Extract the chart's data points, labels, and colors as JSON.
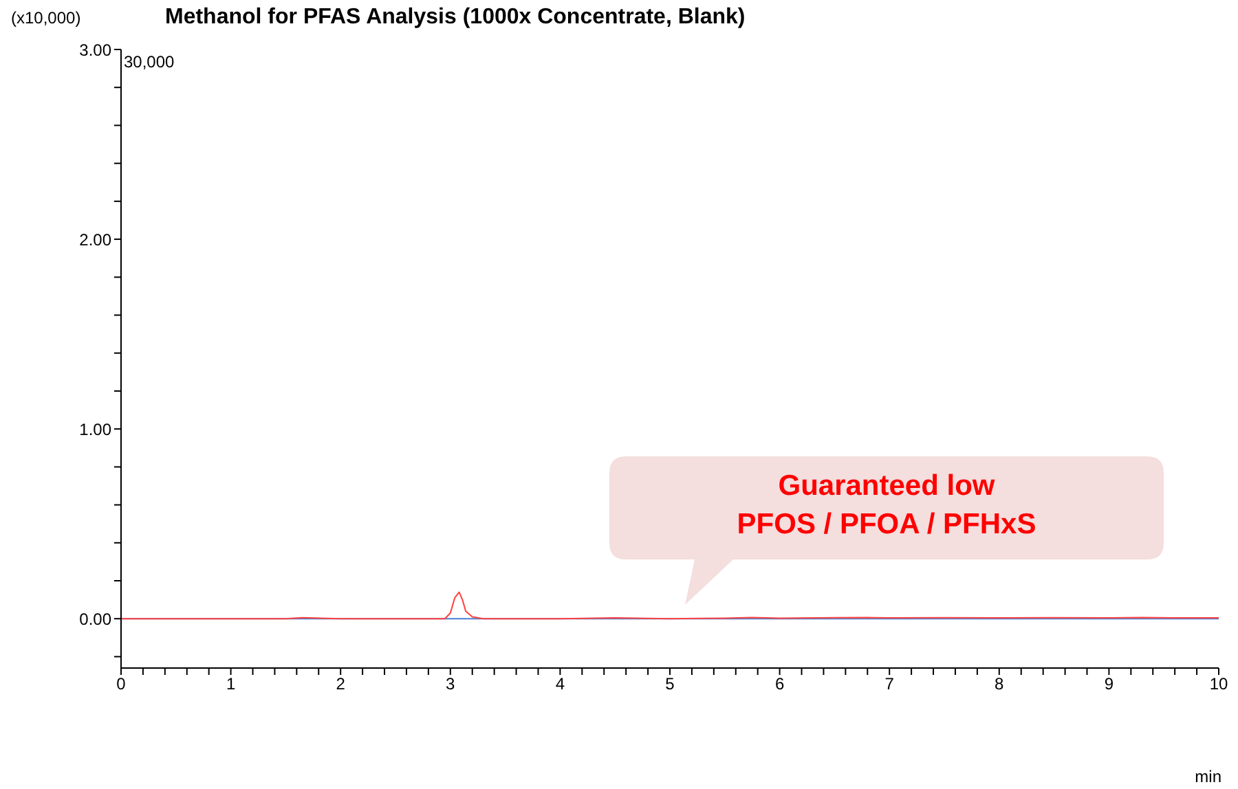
{
  "chart_data": {
    "type": "line",
    "title": "Methanol for PFAS Analysis (1000x Concentrate, Blank)",
    "ylabel": "(x10,000)",
    "xlabel": "min",
    "annotations": [
      "30,000",
      "Guaranteed low\nPFOS / PFOA / PFHxS"
    ],
    "xlim": [
      0,
      10
    ],
    "ylim": [
      -0.26,
      3
    ],
    "xticks": [
      0,
      {
        "value": 0.2,
        "label": null
      },
      {
        "value": 0.4,
        "label": null
      },
      {
        "value": 0.6,
        "label": null
      },
      {
        "value": 0.8,
        "label": null
      },
      1,
      {
        "value": 1.2,
        "label": null
      },
      {
        "value": 1.4,
        "label": null
      },
      {
        "value": 1.6,
        "label": null
      },
      {
        "value": 1.8,
        "label": null
      },
      2,
      {
        "value": 2.2,
        "label": null
      },
      {
        "value": 2.4,
        "label": null
      },
      {
        "value": 2.6,
        "label": null
      },
      {
        "value": 2.8,
        "label": null
      },
      3,
      {
        "value": 3.2,
        "label": null
      },
      {
        "value": 3.4,
        "label": null
      },
      {
        "value": 3.6,
        "label": null
      },
      {
        "value": 3.8,
        "label": null
      },
      4,
      {
        "value": 4.2,
        "label": null
      },
      {
        "value": 4.4,
        "label": null
      },
      {
        "value": 4.6,
        "label": null
      },
      {
        "value": 4.8,
        "label": null
      },
      5,
      {
        "value": 5.2,
        "label": null
      },
      {
        "value": 5.4,
        "label": null
      },
      {
        "value": 5.6,
        "label": null
      },
      {
        "value": 5.8,
        "label": null
      },
      6,
      {
        "value": 6.2,
        "label": null
      },
      {
        "value": 6.4,
        "label": null
      },
      {
        "value": 6.6,
        "label": null
      },
      {
        "value": 6.8,
        "label": null
      },
      7,
      {
        "value": 7.2,
        "label": null
      },
      {
        "value": 7.4,
        "label": null
      },
      {
        "value": 7.6,
        "label": null
      },
      {
        "value": 7.8,
        "label": null
      },
      8,
      {
        "value": 8.2,
        "label": null
      },
      {
        "value": 8.4,
        "label": null
      },
      {
        "value": 8.6,
        "label": null
      },
      {
        "value": 8.8,
        "label": null
      },
      9,
      {
        "value": 9.2,
        "label": null
      },
      {
        "value": 9.4,
        "label": null
      },
      {
        "value": 9.6,
        "label": null
      },
      {
        "value": 9.8,
        "label": null
      },
      10
    ],
    "yticks": [
      {
        "value": -0.2,
        "label": null
      },
      {
        "value": 0,
        "label": "0.00"
      },
      {
        "value": 0.2,
        "label": null
      },
      {
        "value": 0.4,
        "label": null
      },
      {
        "value": 0.6,
        "label": null
      },
      {
        "value": 0.8,
        "label": null
      },
      {
        "value": 1,
        "label": "1.00"
      },
      {
        "value": 1.2,
        "label": null
      },
      {
        "value": 1.4,
        "label": null
      },
      {
        "value": 1.6,
        "label": null
      },
      {
        "value": 1.8,
        "label": null
      },
      {
        "value": 2,
        "label": "2.00"
      },
      {
        "value": 2.2,
        "label": null
      },
      {
        "value": 2.4,
        "label": null
      },
      {
        "value": 2.6,
        "label": null
      },
      {
        "value": 2.8,
        "label": null
      },
      {
        "value": 3,
        "label": "3.00"
      }
    ],
    "marker": "none",
    "line_style": "solid",
    "series": [
      {
        "color": "#4a7fd0",
        "x": [
          0,
          2,
          4,
          6,
          8,
          10
        ],
        "values": [
          0,
          0,
          0,
          0,
          0,
          0
        ]
      },
      {
        "color": "#ff4040",
        "x": [
          0,
          0.5,
          1,
          1.5,
          1.65,
          2,
          2.5,
          2.95,
          3.0,
          3.04,
          3.08,
          3.11,
          3.14,
          3.2,
          3.3,
          4,
          4.5,
          5,
          5.5,
          5.75,
          6,
          6.5,
          6.8,
          7,
          7.5,
          8,
          8.5,
          9,
          9.3,
          9.6,
          10
        ],
        "values": [
          0,
          0,
          0,
          0,
          0.005,
          0,
          0,
          0,
          0.03,
          0.11,
          0.14,
          0.1,
          0.04,
          0.01,
          0,
          0,
          0.004,
          0,
          0.003,
          0.006,
          0.003,
          0.005,
          0.006,
          0.004,
          0.005,
          0.004,
          0.005,
          0.004,
          0.006,
          0.004,
          0.004
        ]
      }
    ]
  }
}
